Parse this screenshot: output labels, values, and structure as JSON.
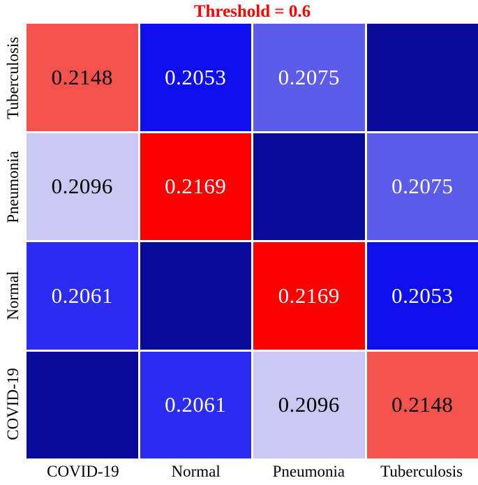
{
  "title": {
    "text": "Threshold = 0.6",
    "color": "#ff0000"
  },
  "chart_data": {
    "type": "heatmap",
    "title": "Threshold = 0.6",
    "x_categories": [
      "COVID-19",
      "Normal",
      "Pneumonia",
      "Tuberculosis"
    ],
    "y_categories_top_to_bottom": [
      "Tuberculosis",
      "Pneumonia",
      "Normal",
      "COVID-19"
    ],
    "matrix": [
      [
        0.2148,
        0.2053,
        0.2075,
        null
      ],
      [
        0.2096,
        0.2169,
        null,
        0.2075
      ],
      [
        0.2061,
        null,
        0.2169,
        0.2053
      ],
      [
        null,
        0.2061,
        0.2096,
        0.2148
      ]
    ],
    "cell_colors": [
      [
        "#f4534d",
        "#0f0fee",
        "#5c5cea",
        "#0a0a99"
      ],
      [
        "#c8c8f2",
        "#fb0200",
        "#0a0a99",
        "#5c5cea"
      ],
      [
        "#2b2bf2",
        "#0a0a99",
        "#fb0200",
        "#0f0fee"
      ],
      [
        "#0a0a99",
        "#2b2bf2",
        "#c8c8f2",
        "#f4534d"
      ]
    ],
    "cell_text_colors": [
      [
        "#000000",
        "#ffffff",
        "#ffffff",
        "#ffffff"
      ],
      [
        "#000000",
        "#ffffff",
        "#ffffff",
        "#ffffff"
      ],
      [
        "#ffffff",
        "#ffffff",
        "#ffffff",
        "#ffffff"
      ],
      [
        "#ffffff",
        "#ffffff",
        "#000000",
        "#000000"
      ]
    ],
    "value_decimals": 4,
    "legend": "none",
    "grid_gap_color": "#ffffff"
  }
}
